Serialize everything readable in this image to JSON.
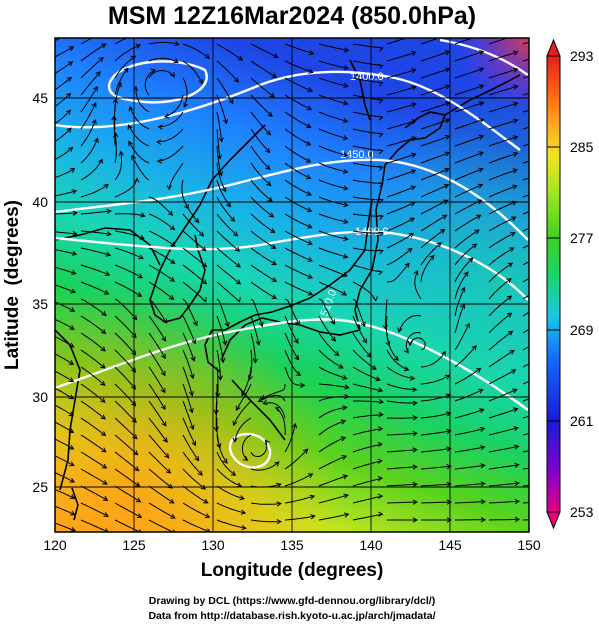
{
  "title": "MSM 12Z16Mar2024 (850.0hPa)",
  "x_axis": {
    "label": "Longitude (degrees)",
    "ticks": [
      "120",
      "125",
      "130",
      "135",
      "140",
      "145",
      "150"
    ],
    "range": [
      120,
      150
    ]
  },
  "y_axis": {
    "label": "Latitude  (degrees)",
    "ticks": [
      "25",
      "30",
      "35",
      "40",
      "45"
    ],
    "range": [
      22.5,
      47.6
    ]
  },
  "colorbar": {
    "ticks": [
      "293",
      "285",
      "277",
      "269",
      "261",
      "253"
    ],
    "range": [
      253,
      293
    ],
    "colors": [
      "#e6007f",
      "#8a00c8",
      "#1a1ad8",
      "#1466ff",
      "#19c8e6",
      "#19d66a",
      "#3cd21e",
      "#a0e61e",
      "#f0e61e",
      "#ffa01e",
      "#ff5a14",
      "#e61e1e"
    ]
  },
  "contour_labels": [
    "1400.0",
    "1450.0",
    "1480.0",
    "1510.0"
  ],
  "footer": {
    "line1": "Drawing by DCL (https://www.gfd-dennou.org/library/dcl/)",
    "line2": "Data from http://database.rish.kyoto-u.ac.jp/arch/jmadata/"
  }
}
